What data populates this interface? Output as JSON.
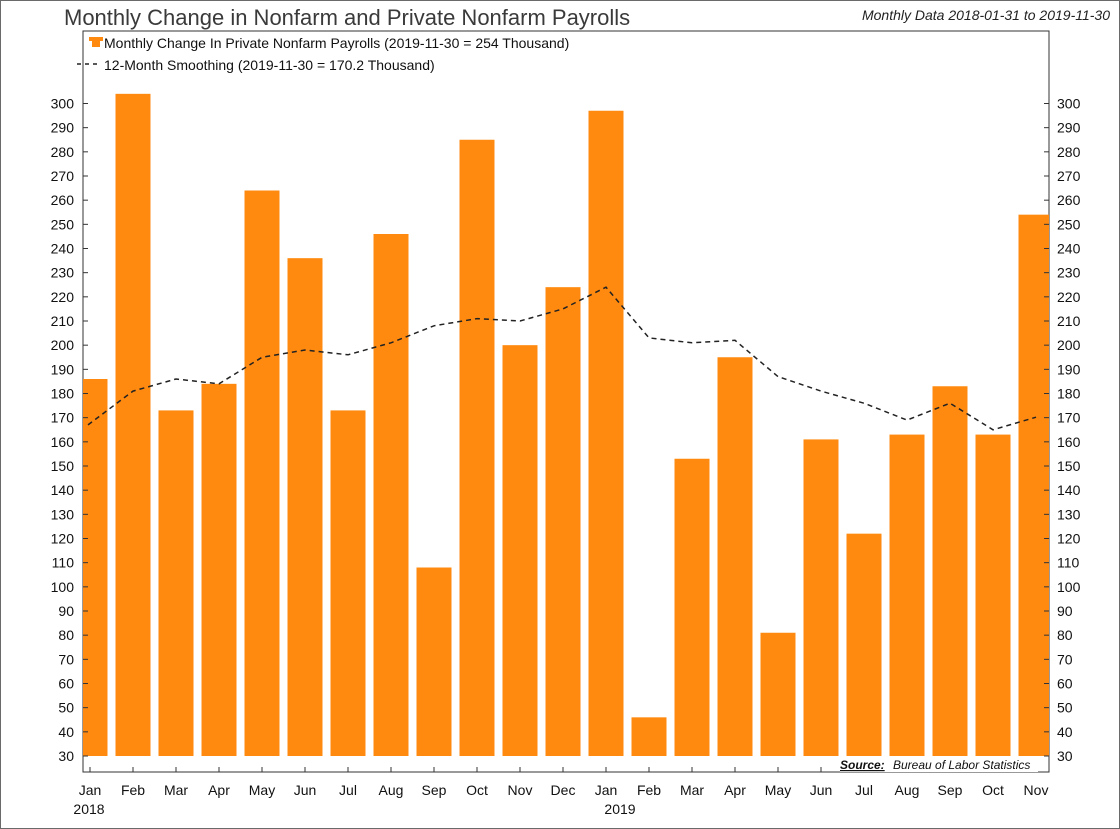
{
  "title": "Monthly Change in Nonfarm and Private Nonfarm Payrolls",
  "subtitle": "Monthly Data 2018-01-31 to 2019-11-30",
  "source": {
    "label": "Source:",
    "text": "Bureau of Labor Statistics"
  },
  "colors": {
    "bar": "#ff8a0f",
    "line": "#222222",
    "axis": "#333333"
  },
  "chart_data": {
    "type": "bar",
    "title": "Monthly Change in Nonfarm and Private Nonfarm Payrolls",
    "categories": [
      "Jan",
      "Feb",
      "Mar",
      "Apr",
      "May",
      "Jun",
      "Jul",
      "Aug",
      "Sep",
      "Oct",
      "Nov",
      "Dec",
      "Jan",
      "Feb",
      "Mar",
      "Apr",
      "May",
      "Jun",
      "Jul",
      "Aug",
      "Sep",
      "Oct",
      "Nov"
    ],
    "year_labels": [
      {
        "index": 0,
        "label": "2018"
      },
      {
        "index": 12,
        "label": "2019"
      }
    ],
    "series": [
      {
        "name": "Monthly Change In Private Nonfarm Payrolls",
        "legend": "Monthly Change In Private Nonfarm Payrolls (2019-11-30 = 254 Thousand)",
        "type": "bar",
        "values": [
          186,
          304,
          173,
          184,
          264,
          236,
          173,
          246,
          108,
          285,
          200,
          224,
          297,
          46,
          153,
          195,
          81,
          161,
          122,
          163,
          183,
          163,
          254
        ]
      },
      {
        "name": "12-Month Smoothing",
        "legend": "12-Month Smoothing  (2019-11-30 = 170.2 Thousand)",
        "type": "line",
        "style": "dashed",
        "values": [
          167,
          181,
          186,
          184,
          195,
          198,
          196,
          201,
          208,
          211,
          210,
          215,
          224,
          203,
          201,
          202,
          187,
          181,
          176,
          169,
          176,
          165,
          170.2
        ]
      }
    ],
    "ylim": [
      30,
      300
    ],
    "yticks": [
      30,
      40,
      50,
      60,
      70,
      80,
      90,
      100,
      110,
      120,
      130,
      140,
      150,
      160,
      170,
      180,
      190,
      200,
      210,
      220,
      230,
      240,
      250,
      260,
      270,
      280,
      290,
      300
    ],
    "xlabel": "",
    "ylabel": "",
    "legend_position": "top-left"
  }
}
